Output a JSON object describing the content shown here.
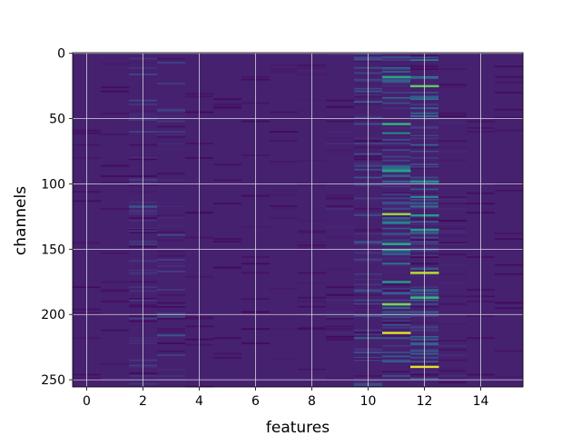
{
  "chart_data": {
    "type": "heatmap",
    "title": "",
    "xlabel": "features",
    "ylabel": "channels",
    "n_features": 16,
    "n_channels": 256,
    "xlim": [
      -0.5,
      15.5
    ],
    "ylim": [
      255.5,
      -0.5
    ],
    "x_ticks": [
      0,
      2,
      4,
      6,
      8,
      10,
      12,
      14
    ],
    "x_tick_labels": [
      "0",
      "2",
      "4",
      "6",
      "8",
      "10",
      "12",
      "14"
    ],
    "y_ticks": [
      0,
      50,
      100,
      150,
      200,
      250
    ],
    "y_tick_labels": [
      "0",
      "50",
      "100",
      "150",
      "200",
      "250"
    ],
    "colormap": "viridis",
    "grid": true,
    "base_color": "#45216f",
    "column_activity": [
      0.06,
      0.04,
      0.18,
      0.16,
      0.04,
      0.03,
      0.05,
      0.06,
      0.07,
      0.1,
      0.22,
      0.3,
      0.28,
      0.1,
      0.03,
      0.04
    ],
    "highlights": [
      {
        "feature": 11,
        "channel": 123,
        "level": 0.85
      },
      {
        "feature": 11,
        "channel": 214,
        "level": 0.95
      },
      {
        "feature": 11,
        "channel": 192,
        "level": 0.8
      },
      {
        "feature": 11,
        "channel": 18,
        "level": 0.6
      },
      {
        "feature": 11,
        "channel": 54,
        "level": 0.65
      },
      {
        "feature": 11,
        "channel": 90,
        "level": 0.6
      },
      {
        "feature": 11,
        "channel": 146,
        "level": 0.6
      },
      {
        "feature": 11,
        "channel": 175,
        "level": 0.55
      },
      {
        "feature": 12,
        "channel": 240,
        "level": 0.95
      },
      {
        "feature": 12,
        "channel": 168,
        "level": 0.9
      },
      {
        "feature": 12,
        "channel": 187,
        "level": 0.65
      },
      {
        "feature": 12,
        "channel": 124,
        "level": 0.55
      },
      {
        "feature": 12,
        "channel": 25,
        "level": 0.75
      },
      {
        "feature": 12,
        "channel": 135,
        "level": 0.55
      },
      {
        "feature": 12,
        "channel": 98,
        "level": 0.5
      }
    ]
  }
}
